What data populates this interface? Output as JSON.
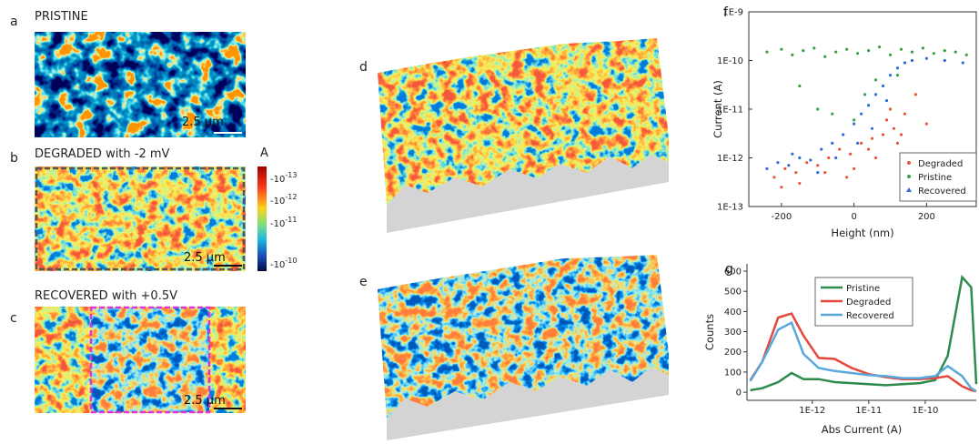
{
  "panels": [
    {
      "label": "a",
      "title": "PRISTINE",
      "scale_bar": "2.5 μm"
    },
    {
      "label": "b",
      "title": "DEGRADED with -2 mV",
      "scale_bar": "2.5 μm"
    },
    {
      "label": "c",
      "title": "RECOVERED with +0.5V",
      "scale_bar": "2.5 μm"
    },
    {
      "label": "d"
    },
    {
      "label": "e"
    }
  ],
  "colorbar": {
    "unit": "A",
    "ticks": [
      {
        "base": "-10",
        "exponent": "-13"
      },
      {
        "base": "-10",
        "exponent": "-12"
      },
      {
        "base": "-10",
        "exponent": "-11"
      },
      {
        "base": "-10",
        "exponent": "-10"
      }
    ]
  },
  "chart_data": [
    {
      "type": "scatter",
      "panel_label": "f",
      "x_label": "Height (nm)",
      "y_label": "Current (A)",
      "ylog": true,
      "xlim": [
        -290,
        337
      ],
      "ylim": [
        1e-13,
        1e-09
      ],
      "xticks": [
        -200,
        0,
        200
      ],
      "yticks": [
        {
          "value": 1e-09,
          "label": "1E-9"
        },
        {
          "value": 1e-10,
          "label": "1E-10"
        },
        {
          "value": 1e-11,
          "label": "1E-11"
        },
        {
          "value": 1e-12,
          "label": "1E-12"
        },
        {
          "value": 1e-13,
          "label": "1E-13"
        }
      ],
      "legend": "lower right",
      "series": [
        {
          "name": "Degraded",
          "color": "#e8563c",
          "marker": "circle",
          "x": [
            -220,
            -190,
            -160,
            -130,
            -100,
            -70,
            -40,
            -10,
            20,
            50,
            80,
            110,
            140,
            170,
            200,
            -150,
            -80,
            0,
            60,
            120,
            -200,
            -20,
            40,
            100,
            130,
            90
          ],
          "values": [
            4e-13,
            6e-13,
            5e-13,
            8e-13,
            7e-13,
            1e-12,
            1.5e-12,
            1.2e-12,
            2e-12,
            2.5e-12,
            3e-12,
            4e-12,
            8e-12,
            2e-11,
            5e-12,
            3e-13,
            5e-13,
            6e-13,
            1e-12,
            2e-12,
            2.5e-13,
            4e-13,
            1.5e-12,
            1e-11,
            3e-12,
            6e-12
          ]
        },
        {
          "name": "Pristine",
          "color": "#3aa047",
          "marker": "circle",
          "x": [
            -240,
            -200,
            -170,
            -140,
            -110,
            -80,
            -50,
            -20,
            10,
            40,
            70,
            100,
            130,
            160,
            190,
            220,
            250,
            280,
            310,
            -150,
            -60,
            30,
            120,
            0,
            -100,
            60
          ],
          "values": [
            1.5e-10,
            1.7e-10,
            1.3e-10,
            1.6e-10,
            1.8e-10,
            1.2e-10,
            1.5e-10,
            1.7e-10,
            1.4e-10,
            1.6e-10,
            1.9e-10,
            1.3e-10,
            1.7e-10,
            1.5e-10,
            1.8e-10,
            1.4e-10,
            1.6e-10,
            1.5e-10,
            1.3e-10,
            3e-11,
            8e-12,
            2e-11,
            5e-11,
            6e-12,
            1e-11,
            4e-11
          ]
        },
        {
          "name": "Recovered",
          "color": "#2f6fd6",
          "marker": "triangle",
          "x": [
            -240,
            -210,
            -180,
            -150,
            -120,
            -90,
            -60,
            -30,
            0,
            20,
            40,
            60,
            80,
            100,
            120,
            140,
            160,
            200,
            250,
            300,
            -100,
            -50,
            10,
            50,
            90,
            -170
          ],
          "values": [
            6e-13,
            8e-13,
            7e-13,
            1e-12,
            9e-13,
            1.5e-12,
            2e-12,
            3e-12,
            5e-12,
            8e-12,
            1.2e-11,
            2e-11,
            3e-11,
            5e-11,
            7e-11,
            9e-11,
            1e-10,
            1.1e-10,
            1e-10,
            9e-11,
            5e-13,
            1e-12,
            2e-12,
            4e-12,
            1.5e-11,
            1.2e-12
          ]
        }
      ]
    },
    {
      "type": "line",
      "panel_label": "g",
      "x_label": "Abs Current (A)",
      "y_label": "Counts",
      "xlog": true,
      "xlim": [
        7e-14,
        8e-10
      ],
      "ylim": [
        -40,
        636
      ],
      "xticks": [
        {
          "value": 1e-12,
          "label": "1E-12"
        },
        {
          "value": 1e-11,
          "label": "1E-11"
        },
        {
          "value": 1e-10,
          "label": "1E-10"
        }
      ],
      "yticks": [
        0,
        100,
        200,
        300,
        400,
        500,
        600
      ],
      "legend": "upper center",
      "x": [
        8e-14,
        1.3e-13,
        2.5e-13,
        4.3e-13,
        7e-13,
        1.3e-12,
        2.5e-12,
        5e-12,
        1e-11,
        2e-11,
        4e-11,
        8e-11,
        1.5e-10,
        2.5e-10,
        4.5e-10,
        6.5e-10,
        8e-10
      ],
      "series": [
        {
          "name": "Pristine",
          "color": "#2e8b4e",
          "values": [
            10,
            20,
            50,
            95,
            65,
            65,
            50,
            45,
            40,
            35,
            40,
            45,
            60,
            180,
            570,
            520,
            40
          ]
        },
        {
          "name": "Degraded",
          "color": "#e5473b",
          "values": [
            60,
            150,
            370,
            390,
            280,
            170,
            165,
            120,
            90,
            75,
            65,
            65,
            70,
            80,
            30,
            10,
            5
          ]
        },
        {
          "name": "Recovered",
          "color": "#58a8dc",
          "values": [
            55,
            150,
            310,
            345,
            190,
            120,
            105,
            95,
            85,
            80,
            70,
            70,
            80,
            130,
            80,
            20,
            5
          ]
        }
      ]
    }
  ]
}
